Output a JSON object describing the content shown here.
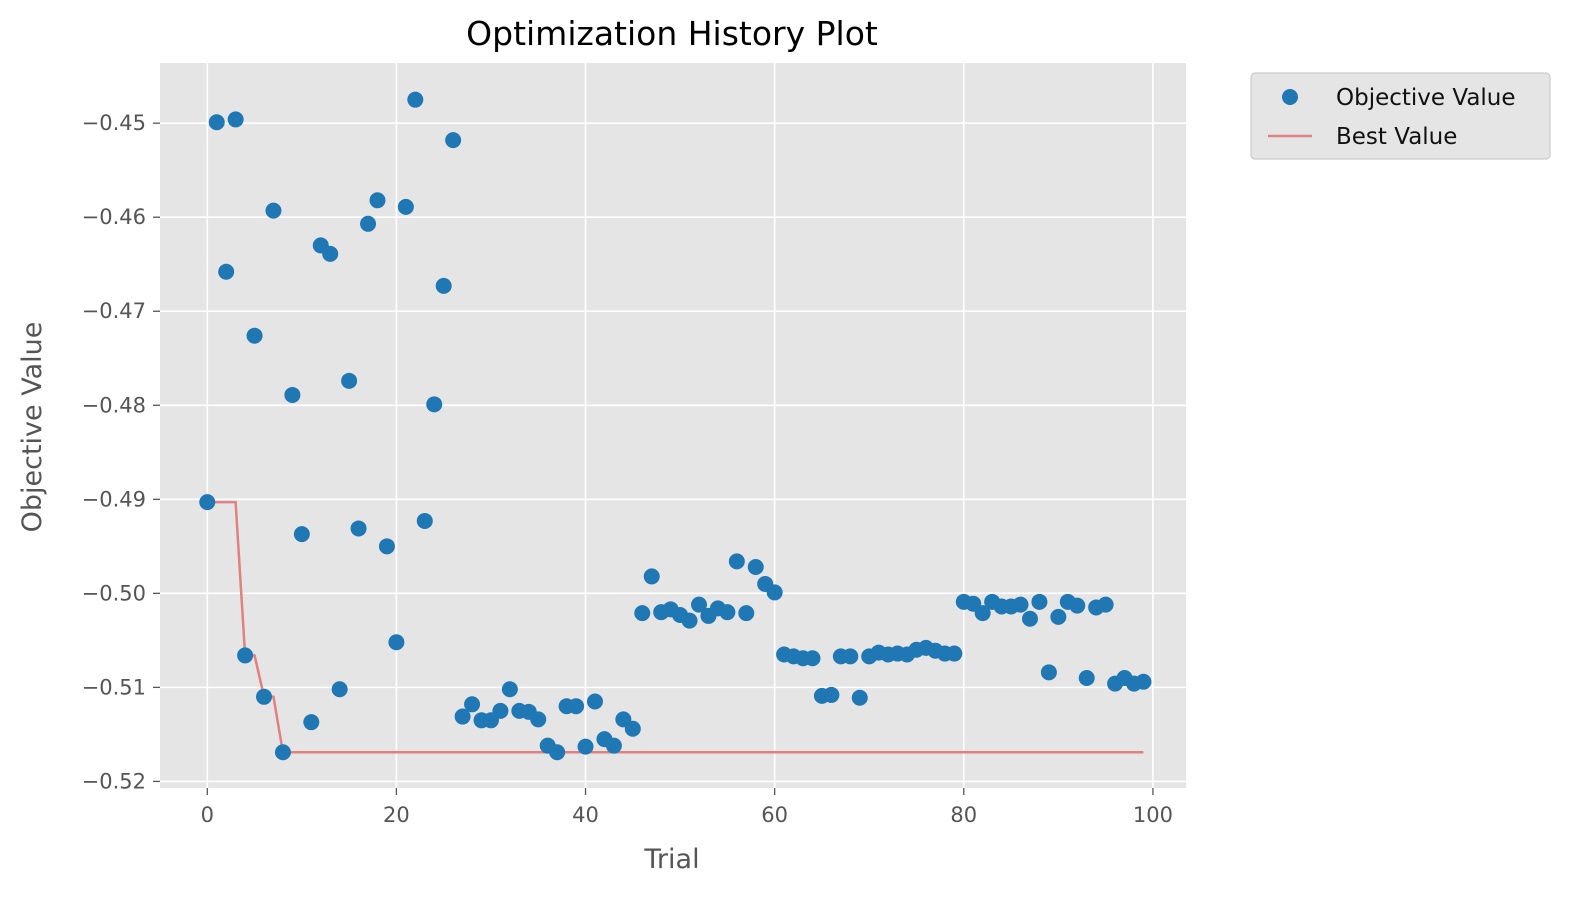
{
  "chart_data": {
    "type": "scatter",
    "title": "Optimization History Plot",
    "xlabel": "Trial",
    "ylabel": "Objective Value",
    "xlim": [
      -5,
      103.5
    ],
    "ylim": [
      -0.5207,
      -0.4436
    ],
    "xticks": [
      0,
      20,
      40,
      60,
      80,
      100
    ],
    "xtick_labels": [
      "0",
      "20",
      "40",
      "60",
      "80",
      "100"
    ],
    "yticks": [
      -0.45,
      -0.46,
      -0.47,
      -0.48,
      -0.49,
      -0.5,
      -0.51,
      -0.52
    ],
    "ytick_labels": [
      "−0.45",
      "−0.46",
      "−0.47",
      "−0.48",
      "−0.49",
      "−0.50",
      "−0.51",
      "−0.52"
    ],
    "grid": true,
    "legend_position": "outside-top-right",
    "colors": {
      "plot_background": "#e5e5e5",
      "grid": "#ffffff",
      "scatter": "#1f77b4",
      "best_line": "#e08080",
      "legend_background": "#e5e5e5",
      "legend_border": "#cccccc"
    },
    "series": [
      {
        "name": "Objective Value",
        "kind": "scatter",
        "points": [
          [
            0,
            -0.4903
          ],
          [
            1,
            -0.4499
          ],
          [
            2,
            -0.4658
          ],
          [
            3,
            -0.4496
          ],
          [
            4,
            -0.5066
          ],
          [
            5,
            -0.4726
          ],
          [
            6,
            -0.511
          ],
          [
            7,
            -0.4593
          ],
          [
            8,
            -0.5169
          ],
          [
            9,
            -0.4789
          ],
          [
            10,
            -0.4937
          ],
          [
            11,
            -0.5137
          ],
          [
            12,
            -0.463
          ],
          [
            13,
            -0.4639
          ],
          [
            14,
            -0.5102
          ],
          [
            15,
            -0.4774
          ],
          [
            16,
            -0.4931
          ],
          [
            17,
            -0.4607
          ],
          [
            18,
            -0.4582
          ],
          [
            19,
            -0.495
          ],
          [
            20,
            -0.5052
          ],
          [
            21,
            -0.4589
          ],
          [
            22,
            -0.4475
          ],
          [
            23,
            -0.4923
          ],
          [
            24,
            -0.4799
          ],
          [
            25,
            -0.4673
          ],
          [
            26,
            -0.4518
          ],
          [
            27,
            -0.5131
          ],
          [
            28,
            -0.5118
          ],
          [
            29,
            -0.5135
          ],
          [
            30,
            -0.5135
          ],
          [
            31,
            -0.5125
          ],
          [
            32,
            -0.5102
          ],
          [
            33,
            -0.5125
          ],
          [
            34,
            -0.5126
          ],
          [
            35,
            -0.5134
          ],
          [
            36,
            -0.5162
          ],
          [
            37,
            -0.5169
          ],
          [
            38,
            -0.512
          ],
          [
            39,
            -0.512
          ],
          [
            40,
            -0.5163
          ],
          [
            41,
            -0.5115
          ],
          [
            42,
            -0.5155
          ],
          [
            43,
            -0.5162
          ],
          [
            44,
            -0.5134
          ],
          [
            45,
            -0.5144
          ],
          [
            46,
            -0.5021
          ],
          [
            47,
            -0.4982
          ],
          [
            48,
            -0.502
          ],
          [
            49,
            -0.5017
          ],
          [
            50,
            -0.5023
          ],
          [
            51,
            -0.5029
          ],
          [
            52,
            -0.5012
          ],
          [
            53,
            -0.5024
          ],
          [
            54,
            -0.5016
          ],
          [
            55,
            -0.502
          ],
          [
            56,
            -0.4966
          ],
          [
            57,
            -0.5021
          ],
          [
            58,
            -0.4972
          ],
          [
            59,
            -0.499
          ],
          [
            60,
            -0.4999
          ],
          [
            61,
            -0.5065
          ],
          [
            62,
            -0.5067
          ],
          [
            63,
            -0.5069
          ],
          [
            64,
            -0.5069
          ],
          [
            65,
            -0.5109
          ],
          [
            66,
            -0.5108
          ],
          [
            67,
            -0.5067
          ],
          [
            68,
            -0.5067
          ],
          [
            69,
            -0.5111
          ],
          [
            70,
            -0.5067
          ],
          [
            71,
            -0.5063
          ],
          [
            72,
            -0.5065
          ],
          [
            73,
            -0.5064
          ],
          [
            74,
            -0.5065
          ],
          [
            75,
            -0.506
          ],
          [
            76,
            -0.5058
          ],
          [
            77,
            -0.5061
          ],
          [
            78,
            -0.5064
          ],
          [
            79,
            -0.5064
          ],
          [
            80,
            -0.5009
          ],
          [
            81,
            -0.5011
          ],
          [
            82,
            -0.5021
          ],
          [
            83,
            -0.5009
          ],
          [
            84,
            -0.5014
          ],
          [
            85,
            -0.5014
          ],
          [
            86,
            -0.5012
          ],
          [
            87,
            -0.5027
          ],
          [
            88,
            -0.5009
          ],
          [
            89,
            -0.5084
          ],
          [
            90,
            -0.5025
          ],
          [
            91,
            -0.5009
          ],
          [
            92,
            -0.5013
          ],
          [
            93,
            -0.509
          ],
          [
            94,
            -0.5015
          ],
          [
            95,
            -0.5012
          ],
          [
            96,
            -0.5096
          ],
          [
            97,
            -0.509
          ],
          [
            98,
            -0.5096
          ],
          [
            99,
            -0.5094
          ]
        ]
      },
      {
        "name": "Best Value",
        "kind": "step-line",
        "points": [
          [
            0,
            -0.4903
          ],
          [
            3,
            -0.4903
          ],
          [
            4,
            -0.5066
          ],
          [
            5,
            -0.5066
          ],
          [
            6,
            -0.511
          ],
          [
            7,
            -0.511
          ],
          [
            8,
            -0.5169
          ],
          [
            99,
            -0.5169
          ]
        ]
      }
    ]
  }
}
